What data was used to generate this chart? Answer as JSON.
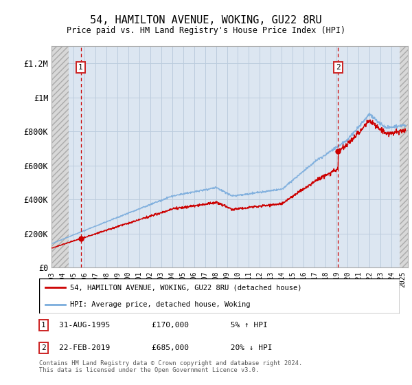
{
  "title": "54, HAMILTON AVENUE, WOKING, GU22 8RU",
  "subtitle": "Price paid vs. HM Land Registry's House Price Index (HPI)",
  "ylim": [
    0,
    1300000
  ],
  "xlim_start": 1993.0,
  "xlim_end": 2025.5,
  "yticks": [
    0,
    200000,
    400000,
    600000,
    800000,
    1000000,
    1200000
  ],
  "ytick_labels": [
    "£0",
    "£200K",
    "£400K",
    "£600K",
    "£800K",
    "£1M",
    "£1.2M"
  ],
  "xtick_years": [
    1993,
    1994,
    1995,
    1996,
    1997,
    1998,
    1999,
    2000,
    2001,
    2002,
    2003,
    2004,
    2005,
    2006,
    2007,
    2008,
    2009,
    2010,
    2011,
    2012,
    2013,
    2014,
    2015,
    2016,
    2017,
    2018,
    2019,
    2020,
    2021,
    2022,
    2023,
    2024,
    2025
  ],
  "sale1_date": 1995.664,
  "sale1_price": 170000,
  "sale1_label": "1",
  "sale2_date": 2019.14,
  "sale2_price": 685000,
  "sale2_label": "2",
  "legend_line1": "54, HAMILTON AVENUE, WOKING, GU22 8RU (detached house)",
  "legend_line2": "HPI: Average price, detached house, Woking",
  "note1_date": "31-AUG-1995",
  "note1_price": "£170,000",
  "note1_hpi": "5% ↑ HPI",
  "note2_date": "22-FEB-2019",
  "note2_price": "£685,000",
  "note2_hpi": "20% ↓ HPI",
  "footer": "Contains HM Land Registry data © Crown copyright and database right 2024.\nThis data is licensed under the Open Government Licence v3.0.",
  "plot_bg_color": "#dce6f1",
  "hatch_bg_color": "#d8d8d8",
  "grid_color": "#bbccdd",
  "red_line_color": "#cc0000",
  "blue_line_color": "#7aacdc",
  "dashed_line_color": "#cc0000",
  "sale_marker_color": "#cc0000",
  "box_color": "#cc2222",
  "hatch_left_end": 1994.58,
  "hatch_right_start": 2024.75
}
